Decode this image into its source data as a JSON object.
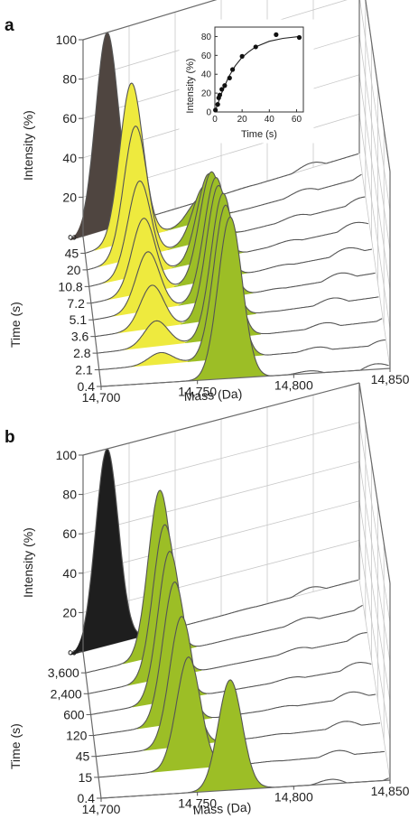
{
  "chart_data": [
    {
      "panel_label": "a",
      "type": "area",
      "projection": "3d-waterfall",
      "xlabel": "Mass (Da)",
      "ylabel": "Time (s)",
      "zlabel": "Intensity (%)",
      "x_ticks": [
        "14,700",
        "14,750",
        "14,800",
        "14,850"
      ],
      "y_ticks": [
        "0.4",
        "2.1",
        "2.8",
        "3.6",
        "5.1",
        "7.2",
        "10.8",
        "20",
        "45",
        "∞"
      ],
      "z_ticks": [
        "20",
        "40",
        "60",
        "80",
        "100"
      ],
      "xlim": [
        14700,
        14850
      ],
      "zlim": [
        0,
        100
      ],
      "colors": {
        "dark": "#4f4540",
        "yellow": "#eeea3e",
        "green": "#9cbe26",
        "line": "#555555"
      },
      "series": [
        {
          "time": "∞",
          "peaks": [
            {
              "mass": 14713,
              "intensity": 100,
              "color": "dark"
            }
          ]
        },
        {
          "time": "45",
          "peaks": [
            {
              "mass": 14725,
              "intensity": 80,
              "color": "yellow"
            },
            {
              "mass": 14762,
              "intensity": 12,
              "color": "green"
            }
          ]
        },
        {
          "time": "20",
          "peaks": [
            {
              "mass": 14726,
              "intensity": 67,
              "color": "yellow"
            },
            {
              "mass": 14763,
              "intensity": 28,
              "color": "green"
            }
          ]
        },
        {
          "time": "10.8",
          "peaks": [
            {
              "mass": 14727,
              "intensity": 48,
              "color": "yellow"
            },
            {
              "mass": 14764,
              "intensity": 44,
              "color": "green"
            }
          ]
        },
        {
          "time": "7.2",
          "peaks": [
            {
              "mass": 14728,
              "intensity": 38,
              "color": "yellow"
            },
            {
              "mass": 14764,
              "intensity": 55,
              "color": "green"
            }
          ]
        },
        {
          "time": "5.1",
          "peaks": [
            {
              "mass": 14729,
              "intensity": 30,
              "color": "yellow"
            },
            {
              "mass": 14765,
              "intensity": 62,
              "color": "green"
            }
          ]
        },
        {
          "time": "3.6",
          "peaks": [
            {
              "mass": 14730,
              "intensity": 22,
              "color": "yellow"
            },
            {
              "mass": 14765,
              "intensity": 68,
              "color": "green"
            }
          ]
        },
        {
          "time": "2.8",
          "peaks": [
            {
              "mass": 14731,
              "intensity": 13,
              "color": "yellow"
            },
            {
              "mass": 14766,
              "intensity": 74,
              "color": "green"
            }
          ]
        },
        {
          "time": "2.1",
          "peaks": [
            {
              "mass": 14732,
              "intensity": 6,
              "color": "yellow"
            },
            {
              "mass": 14766,
              "intensity": 78,
              "color": "green"
            }
          ]
        },
        {
          "time": "0.4",
          "peaks": [
            {
              "mass": 14767,
              "intensity": 82,
              "color": "green"
            }
          ]
        }
      ],
      "inset": {
        "type": "scatter",
        "xlabel": "Time (s)",
        "ylabel": "Intensity (%)",
        "xlim": [
          0,
          65
        ],
        "ylim": [
          0,
          90
        ],
        "x_ticks": [
          "0",
          "20",
          "40",
          "60"
        ],
        "y_ticks": [
          "0",
          "20",
          "40",
          "60",
          "80"
        ],
        "points": [
          [
            0.4,
            2
          ],
          [
            2.1,
            8
          ],
          [
            2.8,
            15
          ],
          [
            3.6,
            18
          ],
          [
            5.1,
            24
          ],
          [
            7.2,
            28
          ],
          [
            10.8,
            36
          ],
          [
            13,
            45
          ],
          [
            20,
            59
          ],
          [
            30,
            69
          ],
          [
            45,
            82
          ],
          [
            62,
            79
          ]
        ],
        "fit": [
          [
            0,
            0
          ],
          [
            5,
            20
          ],
          [
            10,
            37
          ],
          [
            15,
            49
          ],
          [
            20,
            58
          ],
          [
            25,
            64
          ],
          [
            30,
            69
          ],
          [
            40,
            75
          ],
          [
            50,
            78
          ],
          [
            62,
            80
          ]
        ]
      }
    },
    {
      "panel_label": "b",
      "type": "area",
      "projection": "3d-waterfall",
      "xlabel": "Mass (Da)",
      "ylabel": "Time (s)",
      "zlabel": "Intensity (%)",
      "x_ticks": [
        "14,700",
        "14,750",
        "14,800",
        "14,850"
      ],
      "y_ticks": [
        "0.4",
        "15",
        "45",
        "120",
        "600",
        "2,400",
        "3,600",
        "∞"
      ],
      "z_ticks": [
        "20",
        "40",
        "60",
        "80",
        "100"
      ],
      "xlim": [
        14700,
        14850
      ],
      "zlim": [
        0,
        100
      ],
      "colors": {
        "dark": "#1e1e1e",
        "green": "#9cbe26",
        "line": "#555555"
      },
      "series": [
        {
          "time": "∞",
          "peaks": [
            {
              "mass": 14713,
              "intensity": 100,
              "color": "dark"
            }
          ]
        },
        {
          "time": "3,600",
          "peaks": [
            {
              "mass": 14740,
              "intensity": 84,
              "color": "green"
            }
          ]
        },
        {
          "time": "2,400",
          "peaks": [
            {
              "mass": 14741,
              "intensity": 78,
              "color": "green"
            }
          ]
        },
        {
          "time": "600",
          "peaks": [
            {
              "mass": 14742,
              "intensity": 76,
              "color": "green"
            }
          ]
        },
        {
          "time": "120",
          "peaks": [
            {
              "mass": 14743,
              "intensity": 72,
              "color": "green"
            }
          ]
        },
        {
          "time": "45",
          "peaks": [
            {
              "mass": 14745,
              "intensity": 66,
              "color": "green"
            }
          ]
        },
        {
          "time": "15",
          "peaks": [
            {
              "mass": 14747,
              "intensity": 57,
              "color": "green"
            }
          ]
        },
        {
          "time": "0.4",
          "peaks": [
            {
              "mass": 14767,
              "intensity": 56,
              "color": "green"
            }
          ]
        }
      ]
    }
  ]
}
